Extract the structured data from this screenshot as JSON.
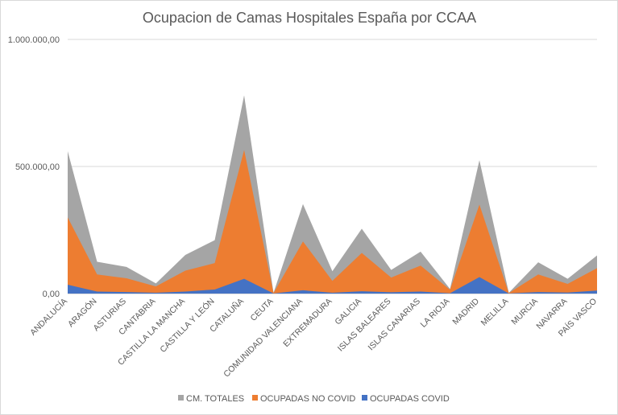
{
  "chart_data": {
    "type": "area",
    "title": "Ocupacion de Camas Hospitales España por CCAA",
    "categories": [
      "ANDALUCÍA",
      "ARAGÓN",
      "ASTURIAS",
      "CANTABRIA",
      "CASTILLA LA MANCHA",
      "CASTILLA Y LEÓN",
      "CATALUÑA",
      "CEUTA",
      "COMUNIDAD VALENCIANA",
      "EXTREMADURA",
      "GALICIA",
      "ISLAS BALEARES",
      "ISLAS CANARIAS",
      "LA RIOJA",
      "MADRID",
      "MELILLA",
      "MURCIA",
      "NAVARRA",
      "PAÍS VASCO"
    ],
    "y_ticks": [
      "1.000.000,00",
      "500.000,00",
      "0,00"
    ],
    "ylim": [
      0,
      1000000
    ],
    "series": [
      {
        "name": "CM. TOTALES",
        "color": "#a5a5a5",
        "values": [
          560000,
          125000,
          105000,
          40000,
          152000,
          210000,
          780000,
          3000,
          352000,
          88000,
          255000,
          93000,
          165000,
          18000,
          525000,
          3000,
          123000,
          58000,
          150000
        ]
      },
      {
        "name": "OCUPADAS NO COVID",
        "color": "#ed7d31",
        "values": [
          300000,
          75000,
          60000,
          28000,
          90000,
          120000,
          565000,
          2000,
          205000,
          50000,
          160000,
          63000,
          110000,
          15000,
          350000,
          2000,
          75000,
          38000,
          100000
        ]
      },
      {
        "name": "OCUPADAS COVID",
        "color": "#4472c4",
        "values": [
          35000,
          8000,
          6000,
          3000,
          8000,
          16000,
          58000,
          500,
          13000,
          3000,
          9000,
          5000,
          8000,
          1000,
          65000,
          500,
          6000,
          4000,
          12000
        ]
      }
    ],
    "legend": [
      "CM. TOTALES",
      "OCUPADAS NO COVID",
      "OCUPADAS COVID"
    ],
    "legend_position": "bottom",
    "grid": true
  }
}
